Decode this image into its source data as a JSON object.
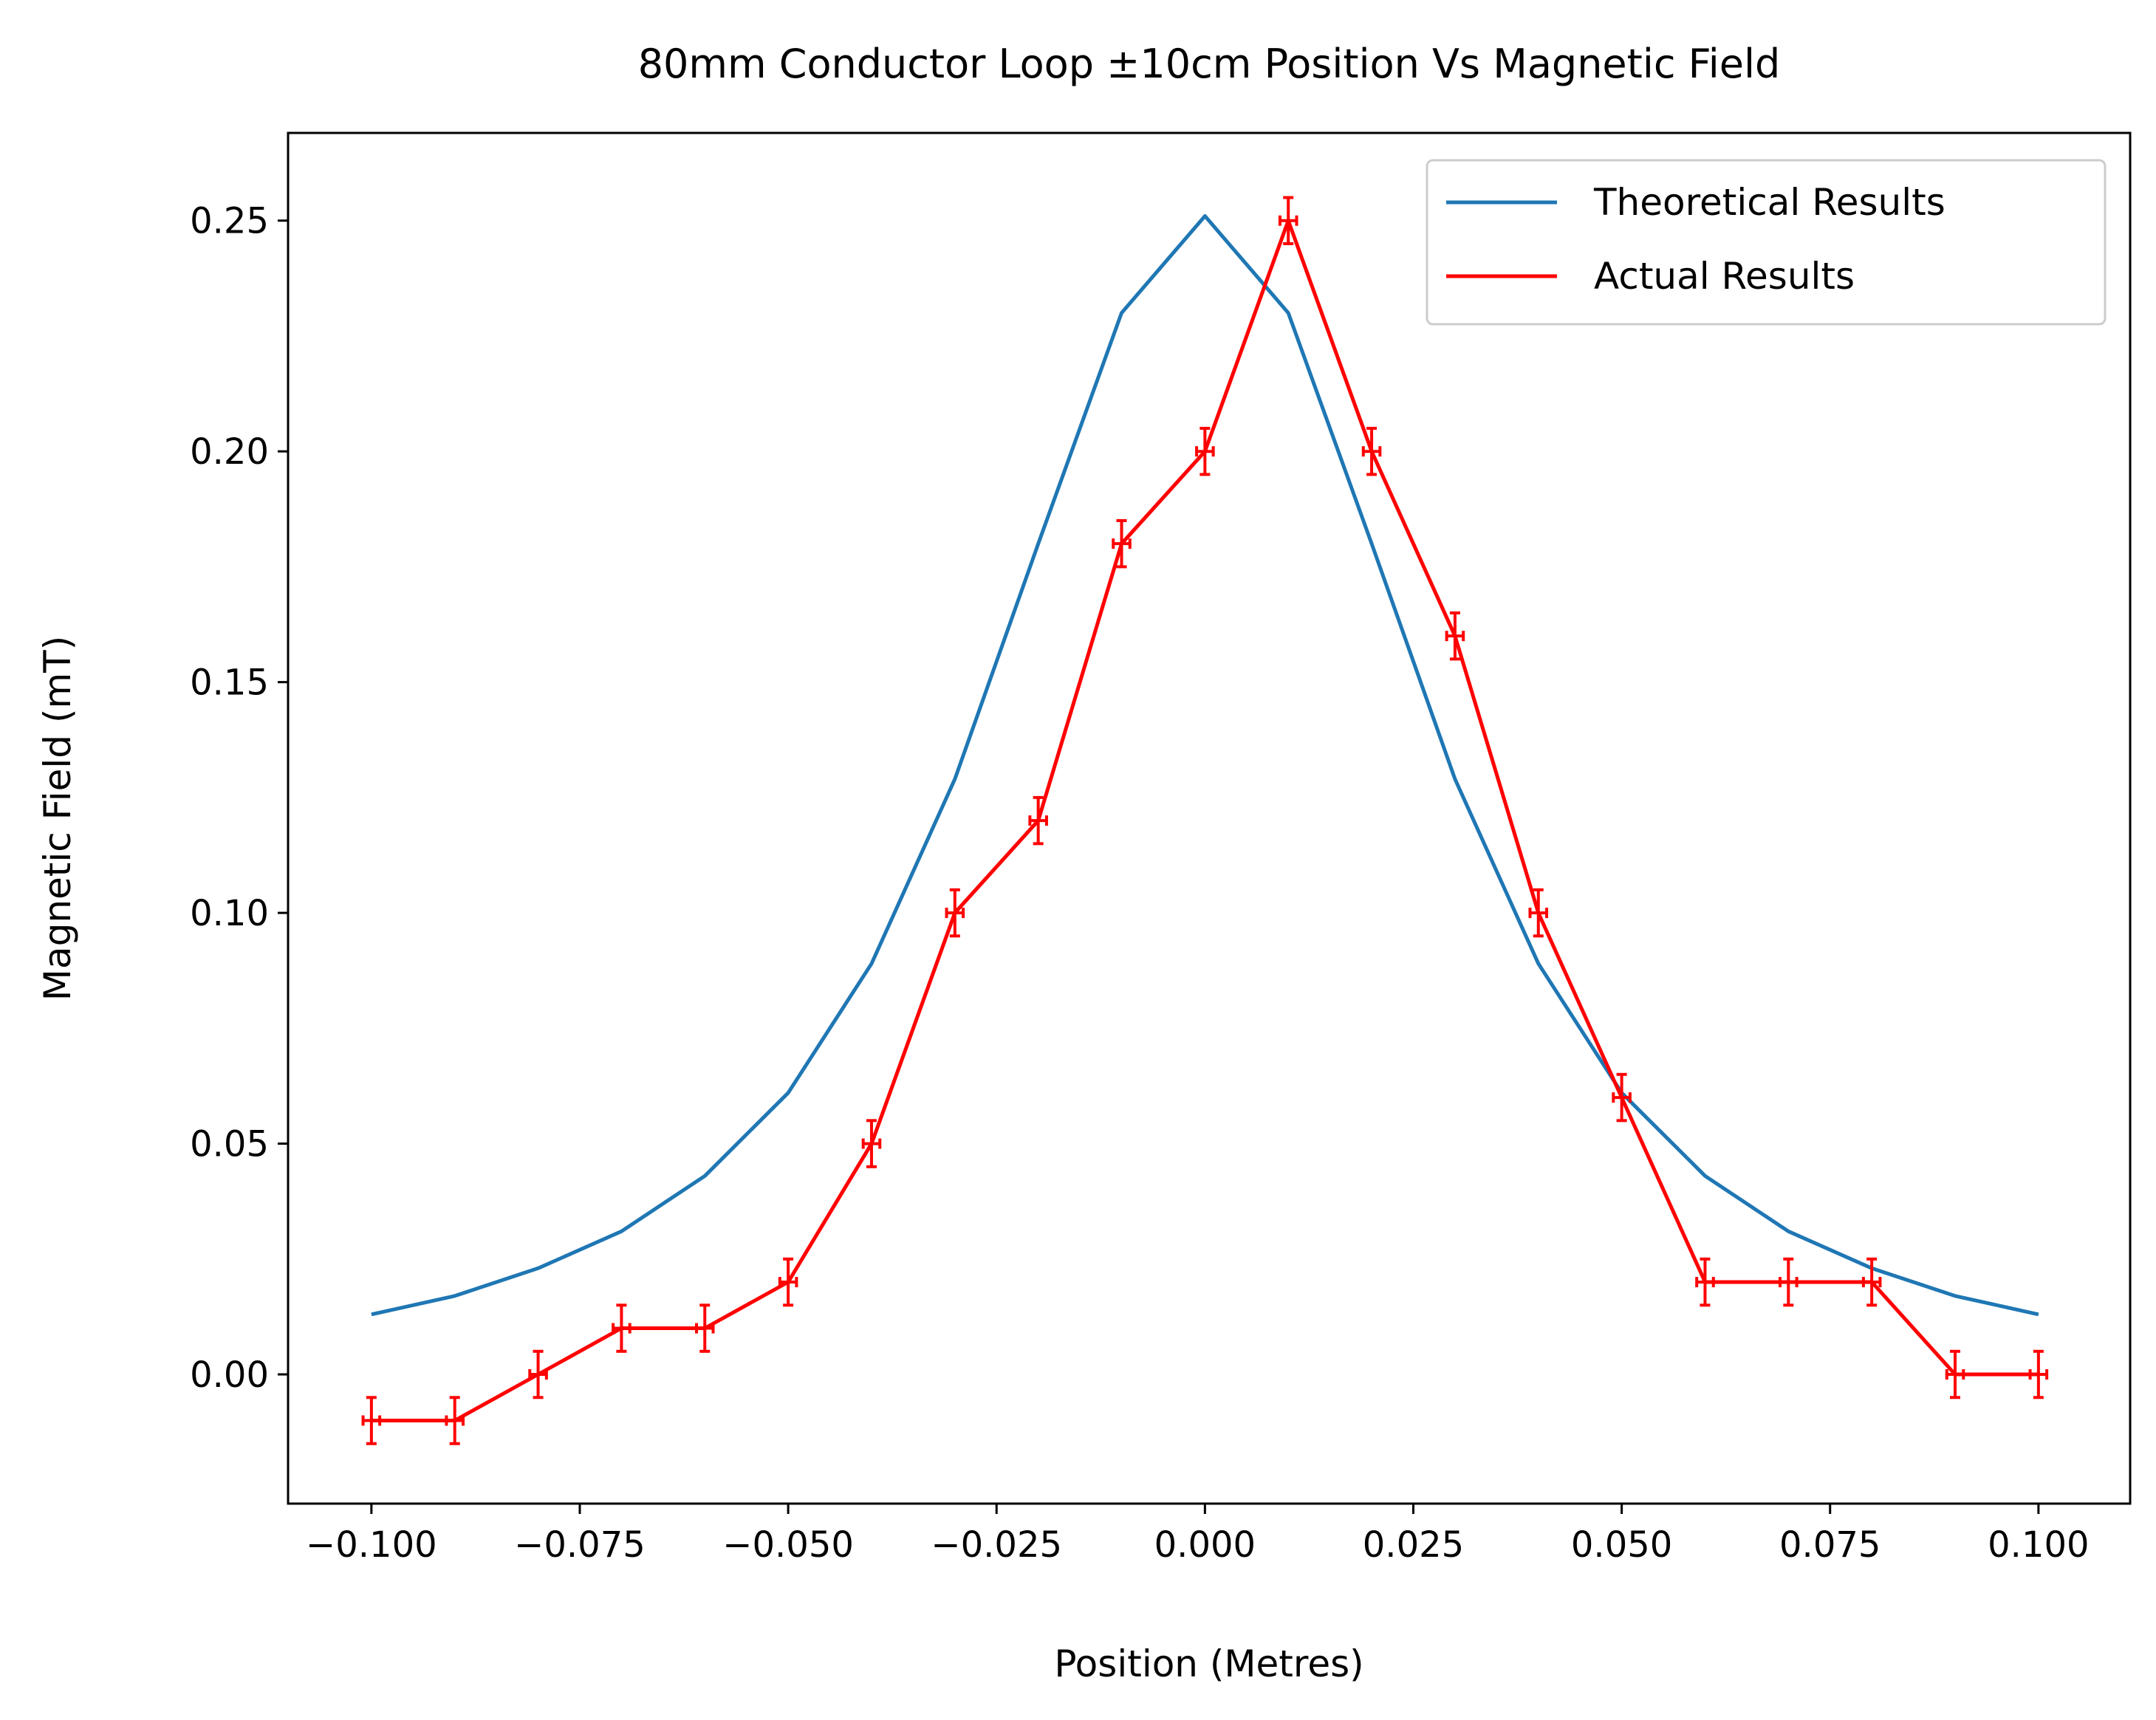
{
  "chart_data": {
    "type": "line",
    "title": "80mm Conductor Loop ±10cm Position Vs Magnetic Field",
    "xlabel": "Position (Metres)",
    "ylabel": "Magnetic Field (mT)",
    "xlim": [
      -0.11,
      0.111
    ],
    "ylim": [
      -0.028,
      0.269
    ],
    "xticks": [
      -0.1,
      -0.075,
      -0.05,
      -0.025,
      0.0,
      0.025,
      0.05,
      0.075,
      0.1
    ],
    "xtick_labels": [
      "−0.100",
      "−0.075",
      "−0.050",
      "−0.025",
      "0.000",
      "0.025",
      "0.050",
      "0.075",
      "0.100"
    ],
    "yticks": [
      0.0,
      0.05,
      0.1,
      0.15,
      0.2,
      0.25
    ],
    "ytick_labels": [
      "0.00",
      "0.05",
      "0.10",
      "0.15",
      "0.20",
      "0.25"
    ],
    "grid": false,
    "legend_position": "top-right",
    "x": [
      -0.1,
      -0.09,
      -0.08,
      -0.07,
      -0.06,
      -0.05,
      -0.04,
      -0.03,
      -0.02,
      -0.01,
      0.0,
      0.01,
      0.02,
      0.03,
      0.04,
      0.05,
      0.06,
      0.07,
      0.08,
      0.09,
      0.1
    ],
    "series": [
      {
        "name": "Theoretical Results",
        "color": "#1f77b4",
        "values": [
          0.013,
          0.017,
          0.023,
          0.031,
          0.043,
          0.061,
          0.089,
          0.129,
          0.18,
          0.23,
          0.251,
          0.23,
          0.18,
          0.129,
          0.089,
          0.061,
          0.043,
          0.031,
          0.023,
          0.017,
          0.013
        ]
      },
      {
        "name": "Actual Results",
        "color": "#ff0000",
        "values": [
          -0.01,
          -0.01,
          0.0,
          0.01,
          0.01,
          0.02,
          0.05,
          0.1,
          0.12,
          0.18,
          0.2,
          0.25,
          0.2,
          0.16,
          0.1,
          0.06,
          0.02,
          0.02,
          0.02,
          0.0,
          0.0
        ],
        "y_error": 0.005,
        "x_error": 0.001
      }
    ]
  }
}
